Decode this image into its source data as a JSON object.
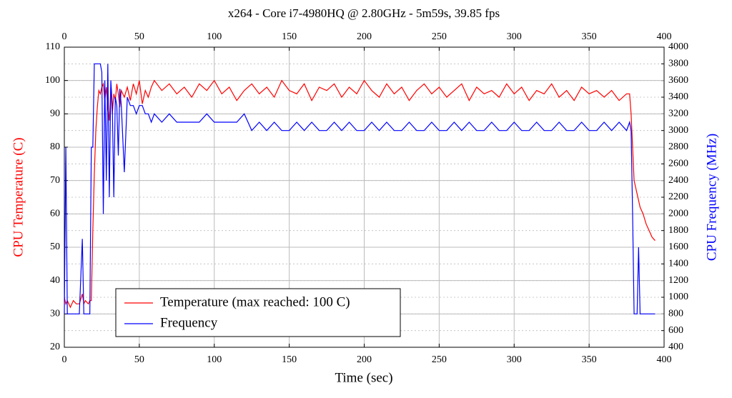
{
  "chart_data": {
    "type": "line",
    "title": "x264 - Core i7-4980HQ @ 2.80GHz - 5m59s, 39.85 fps",
    "xlabel": "Time (sec)",
    "ylabel": "CPU Temperature (C)",
    "y2label": "CPU Frequency (MHz)",
    "xlim": [
      0,
      400
    ],
    "xticks": [
      0,
      50,
      100,
      150,
      200,
      250,
      300,
      350,
      400
    ],
    "ylim": [
      20,
      110
    ],
    "yticks": [
      20,
      30,
      40,
      50,
      60,
      70,
      80,
      90,
      100,
      110
    ],
    "y2lim": [
      400,
      4000
    ],
    "y2ticks": [
      400,
      600,
      800,
      1000,
      1200,
      1400,
      1600,
      1800,
      2000,
      2200,
      2400,
      2600,
      2800,
      3000,
      3200,
      3400,
      3600,
      3800,
      4000
    ],
    "grid": true,
    "legend": "lower left",
    "x": [
      0,
      1,
      2,
      4,
      6,
      8,
      10,
      12,
      13,
      14,
      16,
      17,
      18,
      19,
      20,
      21,
      22,
      23,
      24,
      25,
      26,
      27,
      28,
      29,
      30,
      31,
      32,
      33,
      34,
      35,
      36,
      37,
      38,
      40,
      42,
      44,
      46,
      48,
      50,
      52,
      54,
      56,
      58,
      60,
      65,
      70,
      75,
      80,
      85,
      90,
      95,
      100,
      105,
      110,
      115,
      120,
      125,
      130,
      135,
      140,
      145,
      150,
      155,
      160,
      165,
      170,
      175,
      180,
      185,
      190,
      195,
      200,
      205,
      210,
      215,
      220,
      225,
      230,
      235,
      240,
      245,
      250,
      255,
      260,
      265,
      270,
      275,
      280,
      285,
      290,
      295,
      300,
      305,
      310,
      315,
      320,
      325,
      330,
      335,
      340,
      345,
      350,
      355,
      360,
      365,
      370,
      375,
      377,
      378,
      379,
      380,
      382,
      383,
      384,
      386,
      388,
      390,
      392,
      394
    ],
    "series": [
      {
        "name": "Temperature (max reached: 100 C)",
        "color": "#ff0000",
        "values": [
          35,
          33,
          34,
          32,
          34,
          33,
          33,
          36,
          33,
          34,
          33,
          34,
          34,
          55,
          72,
          85,
          92,
          97,
          96,
          98,
          99,
          94,
          98,
          92,
          88,
          98,
          90,
          96,
          94,
          99,
          96,
          92,
          97,
          95,
          98,
          94,
          99,
          96,
          100,
          93,
          97,
          95,
          98,
          100,
          97,
          99,
          96,
          98,
          95,
          99,
          97,
          100,
          96,
          98,
          94,
          97,
          99,
          96,
          98,
          95,
          100,
          97,
          96,
          99,
          94,
          98,
          97,
          99,
          95,
          98,
          96,
          100,
          97,
          95,
          99,
          96,
          98,
          94,
          97,
          99,
          96,
          98,
          95,
          97,
          99,
          94,
          98,
          96,
          97,
          95,
          99,
          96,
          98,
          94,
          97,
          96,
          99,
          95,
          97,
          94,
          98,
          96,
          97,
          95,
          97,
          94,
          96,
          96,
          90,
          80,
          70,
          66,
          64,
          62,
          60,
          57,
          55,
          53,
          52
        ]
      },
      {
        "name": "Frequency",
        "color": "#0000ff",
        "axis": "y2",
        "values": [
          800,
          2800,
          800,
          800,
          800,
          800,
          800,
          1700,
          800,
          800,
          800,
          800,
          2800,
          2800,
          3800,
          3800,
          3800,
          3800,
          3800,
          3700,
          2000,
          3600,
          2400,
          3800,
          2200,
          3600,
          3300,
          2200,
          3400,
          3300,
          2700,
          3500,
          3300,
          2500,
          3400,
          3300,
          3300,
          3200,
          3300,
          3300,
          3200,
          3200,
          3100,
          3200,
          3100,
          3200,
          3100,
          3100,
          3100,
          3100,
          3200,
          3100,
          3100,
          3100,
          3100,
          3200,
          3000,
          3100,
          3000,
          3100,
          3000,
          3000,
          3100,
          3000,
          3100,
          3000,
          3000,
          3100,
          3000,
          3100,
          3000,
          3000,
          3100,
          3000,
          3100,
          3000,
          3000,
          3100,
          3000,
          3000,
          3100,
          3000,
          3000,
          3100,
          3000,
          3100,
          3000,
          3000,
          3100,
          3000,
          3000,
          3100,
          3000,
          3000,
          3100,
          3000,
          3000,
          3100,
          3000,
          3000,
          3100,
          3000,
          3000,
          3100,
          3000,
          3100,
          3000,
          3100,
          3000,
          2000,
          800,
          800,
          1600,
          800,
          800,
          800,
          800,
          800,
          800
        ]
      }
    ]
  }
}
